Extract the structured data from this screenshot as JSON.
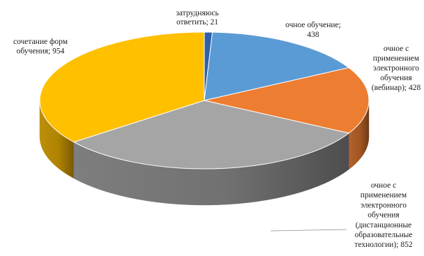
{
  "chart_data": {
    "type": "pie",
    "style": "3d",
    "slices": [
      {
        "label": "затрудняюсь ответить",
        "value": 21,
        "color": "#2E5FA8",
        "label_lines": [
          "затрудняюсь",
          "ответить; 21"
        ]
      },
      {
        "label": "очное обучение",
        "value": 438,
        "color": "#5B9BD5",
        "label_lines": [
          "очное обучение;",
          "438"
        ]
      },
      {
        "label": "очное с применением электронного обучения (вебинар)",
        "value": 428,
        "color": "#ED7D31",
        "label_lines": [
          "очное с",
          "применением",
          "электронного",
          "обучения",
          "(вебинар); 428"
        ]
      },
      {
        "label": "очное с применением электронного обучения (дистанционные образовательные технологии)",
        "value": 852,
        "color": "#A5A5A5",
        "label_lines": [
          "очное с",
          "применением",
          "электронного",
          "обучения",
          "(дистанционные",
          "образовательные",
          "технологии); 852"
        ]
      },
      {
        "label": "сочетание форм обучения",
        "value": 954,
        "color": "#FFC000",
        "label_lines": [
          "сочетание форм",
          "обучения; 954"
        ]
      }
    ]
  }
}
